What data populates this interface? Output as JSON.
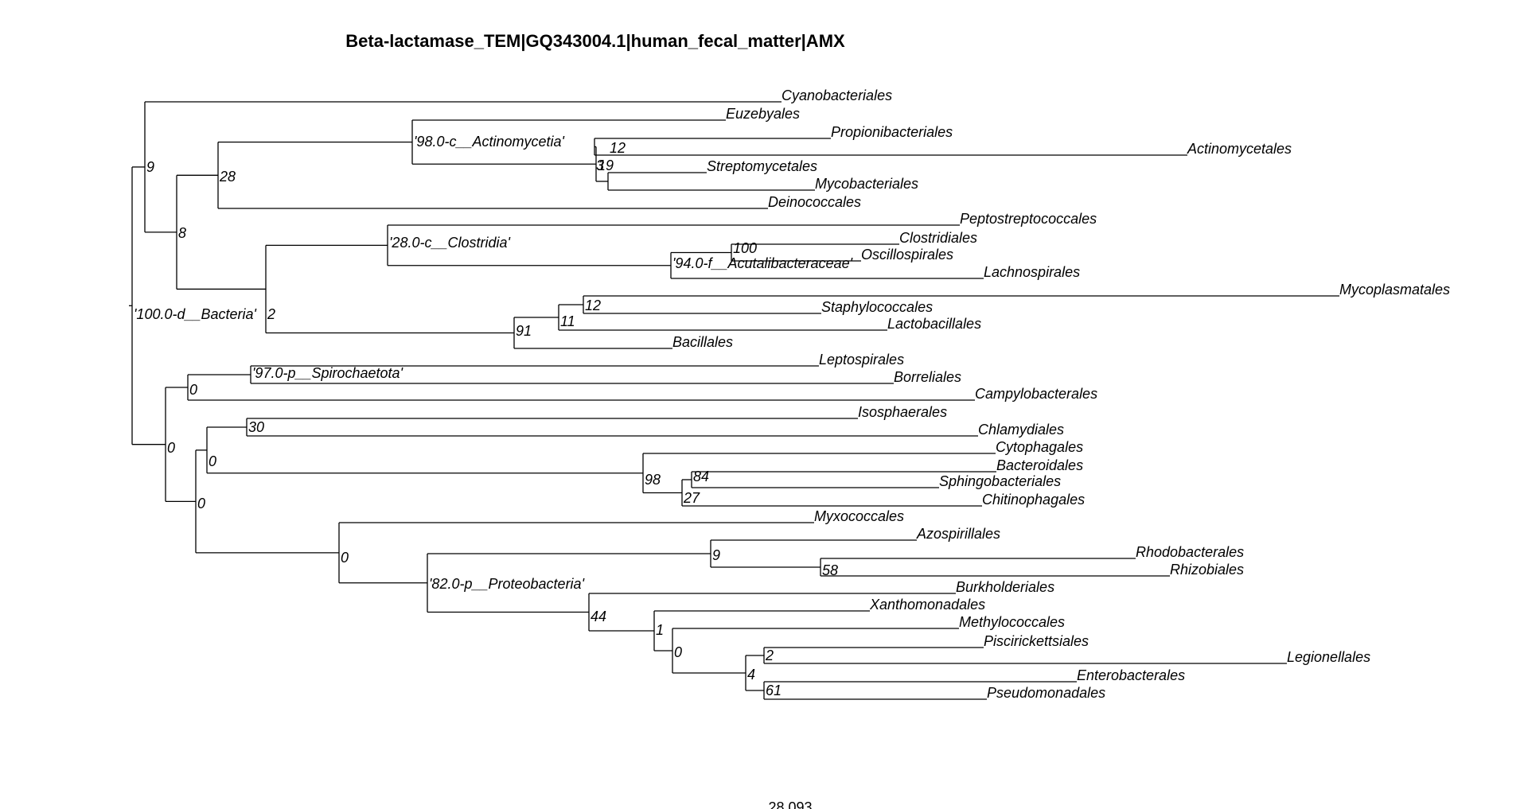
{
  "title": "Beta-lactamase_TEM|GQ343004.1|human_fecal_matter|AMX",
  "scale_value": "28.093",
  "tips": [
    "Cyanobacteriales",
    "Euzebyales",
    "Propionibacteriales",
    "Actinomycetales",
    "Streptomycetales",
    "Mycobacteriales",
    "Deinococcales",
    "Peptostreptococcales",
    "Clostridiales",
    "Oscillospirales",
    "Lachnospirales",
    "Mycoplasmatales",
    "Staphylococcales",
    "Lactobacillales",
    "Bacillales",
    "Leptospirales",
    "Borreliales",
    "Campylobacterales",
    "Isosphaerales",
    "Chlamydiales",
    "Cytophagales",
    "Bacteroidales",
    "Sphingobacteriales",
    "Chitinophagales",
    "Myxococcales",
    "Azospirillales",
    "Rhodobacterales",
    "Rhizobiales",
    "Burkholderiales",
    "Xanthomonadales",
    "Methylococcales",
    "Piscirickettsiales",
    "Legionellales",
    "Enterobacterales",
    "Pseudomonadales"
  ],
  "node_labels": [
    "9",
    "'98.0-c__Actinomycetia'",
    "3",
    "19",
    "12",
    "28",
    "8",
    "'28.0-c__Clostridia'",
    "100",
    "'94.0-f__Acutalibacteraceae'",
    "2",
    "12",
    "11",
    "91",
    "'100.0-d__Bacteria'",
    "'97.0-p__Spirochaetota'",
    "0",
    "30",
    "0",
    "98",
    "84",
    "27",
    "0",
    "0",
    "9",
    "58",
    "'82.0-p__Proteobacteria'",
    "44",
    "1",
    "0",
    "2",
    "4",
    "61",
    "0"
  ]
}
